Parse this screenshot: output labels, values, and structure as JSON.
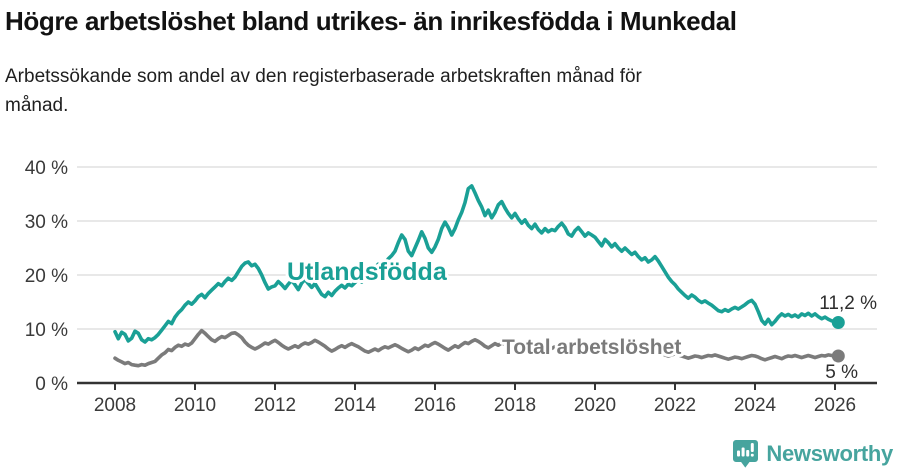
{
  "header": {
    "title": "Högre arbetslöshet bland utrikes- än inrikesfödda i Munkedal",
    "subtitle": "Arbetssökande som andel av den registerbaserade arbetskraften månad för månad."
  },
  "chart_data": {
    "type": "line",
    "title": "Högre arbetslöshet bland utrikes- än inrikesfödda i Munkedal",
    "subtitle": "Arbetssökande som andel av den registerbaserade arbetskraften månad för månad.",
    "x_start": 2008.0,
    "x_step_years": 0.0833,
    "xlim": [
      2008.0,
      2026.17
    ],
    "ylim": [
      0,
      40
    ],
    "grid": "horizontal",
    "grid_color": "#d9d9d9",
    "axis_color": "#333333",
    "axis_text_color": "#3a3a3a",
    "annotation_color": "#2e2e2e",
    "y_ticks": [
      {
        "value": 0,
        "label": "0 %"
      },
      {
        "value": 10,
        "label": "10 %"
      },
      {
        "value": 20,
        "label": "20 %"
      },
      {
        "value": 30,
        "label": "30 %"
      },
      {
        "value": 40,
        "label": "40 %"
      }
    ],
    "x_ticks": [
      {
        "value": 2008,
        "label": "2008"
      },
      {
        "value": 2010,
        "label": "2010"
      },
      {
        "value": 2012,
        "label": "2012"
      },
      {
        "value": 2014,
        "label": "2014"
      },
      {
        "value": 2016,
        "label": "2016"
      },
      {
        "value": 2018,
        "label": "2018"
      },
      {
        "value": 2020,
        "label": "2020"
      },
      {
        "value": 2022,
        "label": "2022"
      },
      {
        "value": 2024,
        "label": "2024"
      },
      {
        "value": 2026,
        "label": "2026"
      }
    ],
    "series": [
      {
        "id": "utlandsfodda",
        "name": "Utlandsfödda",
        "color": "#1aa096",
        "end_label": "11,2 %",
        "end_value": 11.2,
        "values": [
          9.5,
          8.2,
          9.4,
          9.0,
          7.8,
          8.3,
          9.6,
          9.2,
          8.0,
          7.6,
          8.2,
          8.0,
          8.4,
          9.0,
          9.8,
          10.6,
          11.4,
          11.0,
          12.2,
          13.0,
          13.6,
          14.4,
          15.0,
          14.6,
          15.2,
          16.0,
          16.4,
          15.8,
          16.6,
          17.2,
          17.8,
          18.4,
          18.0,
          18.8,
          19.4,
          19.0,
          19.6,
          20.6,
          21.6,
          22.2,
          22.4,
          21.7,
          22.0,
          21.2,
          20.0,
          18.6,
          17.4,
          17.8,
          18.0,
          18.8,
          18.2,
          17.5,
          18.3,
          19.0,
          18.2,
          17.3,
          18.5,
          19.2,
          18.4,
          17.7,
          18.4,
          17.4,
          16.4,
          16.0,
          16.8,
          16.2,
          17.0,
          17.6,
          18.1,
          17.6,
          18.3,
          18.0,
          18.6,
          19.2,
          18.7,
          19.5,
          20.2,
          20.8,
          21.4,
          22.0,
          21.2,
          22.0,
          23.0,
          23.6,
          24.4,
          26.0,
          27.4,
          26.6,
          24.4,
          23.6,
          25.0,
          26.4,
          28.0,
          26.8,
          25.0,
          24.2,
          25.2,
          26.6,
          28.6,
          29.8,
          28.8,
          27.4,
          28.6,
          30.2,
          31.6,
          33.4,
          36.0,
          36.5,
          35.2,
          33.8,
          32.6,
          31.0,
          32.0,
          30.6,
          31.6,
          33.0,
          33.6,
          32.4,
          31.4,
          30.6,
          31.4,
          30.4,
          29.6,
          30.2,
          29.2,
          28.6,
          29.4,
          28.4,
          27.8,
          28.6,
          28.0,
          28.4,
          28.2,
          29.0,
          29.6,
          28.8,
          27.6,
          27.2,
          28.2,
          28.8,
          28.0,
          27.2,
          27.8,
          27.4,
          27.0,
          26.2,
          25.4,
          26.6,
          26.0,
          25.2,
          25.8,
          25.0,
          24.4,
          25.0,
          24.4,
          23.8,
          24.2,
          23.4,
          22.8,
          23.2,
          22.4,
          22.8,
          23.4,
          22.6,
          21.6,
          20.6,
          19.6,
          18.8,
          18.2,
          17.4,
          16.8,
          16.2,
          15.7,
          16.3,
          15.9,
          15.3,
          14.9,
          15.2,
          14.8,
          14.4,
          13.9,
          13.4,
          13.2,
          13.6,
          13.3,
          13.7,
          14.0,
          13.7,
          14.1,
          14.5,
          15.0,
          15.3,
          14.6,
          13.2,
          11.6,
          10.9,
          11.8,
          10.8,
          11.4,
          12.2,
          12.8,
          12.4,
          12.7,
          12.3,
          12.6,
          12.2,
          12.8,
          12.5,
          12.9,
          12.4,
          12.8,
          12.3,
          11.9,
          12.2,
          11.8,
          11.5,
          11.4,
          11.2
        ]
      },
      {
        "id": "total",
        "name": "Total arbetslöshet",
        "color": "#7b7b7b",
        "end_label": "5 %",
        "end_value": 5.0,
        "values": [
          4.6,
          4.2,
          3.9,
          3.6,
          3.8,
          3.4,
          3.3,
          3.2,
          3.4,
          3.3,
          3.6,
          3.8,
          4.0,
          4.6,
          5.2,
          5.6,
          6.2,
          6.0,
          6.6,
          7.0,
          6.8,
          7.2,
          7.0,
          7.4,
          8.2,
          9.0,
          9.7,
          9.2,
          8.6,
          8.0,
          7.7,
          8.2,
          8.6,
          8.4,
          8.8,
          9.2,
          9.3,
          8.9,
          8.4,
          7.6,
          7.0,
          6.6,
          6.3,
          6.6,
          7.0,
          7.4,
          7.2,
          7.6,
          7.9,
          7.5,
          7.0,
          6.6,
          6.3,
          6.6,
          6.9,
          6.6,
          7.1,
          7.4,
          7.2,
          7.5,
          7.9,
          7.6,
          7.2,
          6.8,
          6.3,
          5.9,
          6.2,
          6.6,
          6.9,
          6.6,
          7.0,
          7.3,
          7.0,
          6.7,
          6.3,
          5.9,
          5.7,
          6.0,
          6.3,
          6.0,
          6.4,
          6.7,
          6.5,
          6.8,
          7.1,
          6.8,
          6.4,
          6.1,
          5.8,
          6.1,
          6.5,
          6.2,
          6.6,
          7.0,
          6.8,
          7.2,
          7.5,
          7.2,
          6.8,
          6.4,
          6.1,
          6.5,
          6.9,
          6.6,
          7.1,
          7.5,
          7.3,
          7.7,
          8.0,
          7.7,
          7.3,
          6.8,
          6.5,
          6.9,
          7.3,
          7.0,
          7.4,
          7.2,
          7.0,
          7.3,
          7.1,
          6.8,
          6.4,
          6.1,
          5.9,
          6.2,
          6.6,
          6.3,
          6.0,
          6.3,
          6.1,
          6.4,
          6.7,
          6.4,
          6.1,
          5.8,
          5.6,
          5.9,
          6.2,
          6.0,
          5.7,
          6.0,
          5.8,
          6.1,
          5.9,
          5.6,
          5.8,
          6.6,
          7.2,
          7.5,
          7.3,
          7.0,
          6.8,
          6.6,
          6.4,
          6.6,
          6.8,
          6.6,
          6.3,
          6.0,
          5.8,
          5.6,
          5.9,
          5.7,
          5.4,
          5.2,
          5.0,
          5.2,
          5.4,
          5.2,
          5.0,
          4.8,
          4.6,
          4.8,
          5.0,
          4.9,
          4.7,
          4.9,
          5.1,
          5.0,
          5.2,
          5.0,
          4.8,
          4.6,
          4.4,
          4.6,
          4.8,
          4.7,
          4.5,
          4.7,
          4.9,
          5.1,
          5.0,
          4.8,
          4.5,
          4.3,
          4.5,
          4.7,
          4.9,
          4.7,
          4.5,
          4.8,
          5.0,
          4.9,
          5.1,
          4.9,
          4.7,
          4.9,
          5.1,
          4.9,
          4.7,
          4.9,
          5.1,
          5.0,
          5.2,
          5.1,
          5.0,
          5.0
        ]
      }
    ]
  },
  "footer": {
    "brand": "Newsworthy",
    "brand_color": "#46a49e",
    "logo_icon": "speech-bubble-bar-chart-icon"
  }
}
